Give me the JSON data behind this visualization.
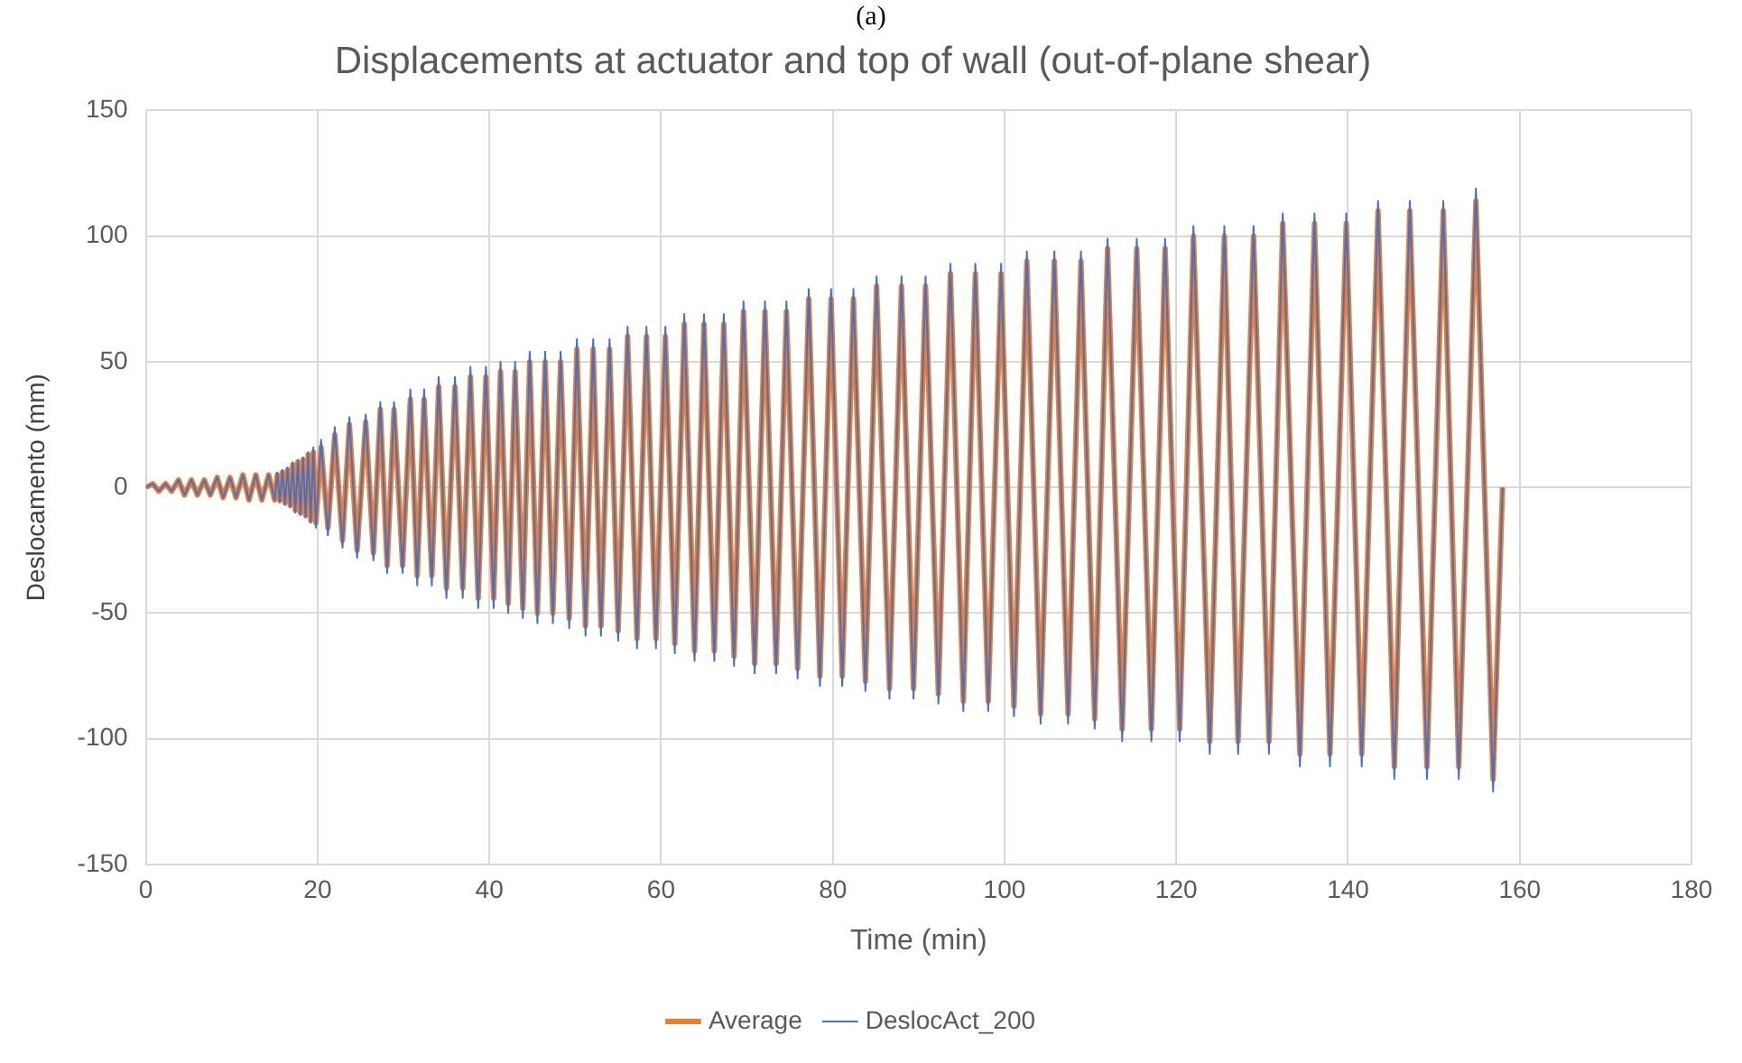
{
  "chart_data": {
    "type": "line",
    "title": "Displacements at actuator and top of wall (out-of-plane shear)",
    "xlabel": "Time (min)",
    "ylabel": "Deslocamento (mm)",
    "annotations": [
      "(a)"
    ],
    "x": [
      0,
      0.8,
      1.5,
      2.3,
      3.0,
      3.8,
      4.5,
      5.3,
      6.0,
      6.8,
      7.5,
      8.3,
      9.0,
      9.8,
      10.5,
      11.3,
      12.0,
      12.8,
      13.5,
      14.3,
      15.0,
      15.3,
      15.6,
      15.9,
      16.2,
      16.5,
      16.8,
      17.1,
      17.4,
      17.7,
      18.0,
      18.3,
      18.6,
      18.9,
      19.2,
      19.5,
      19.8,
      20.4,
      21.2,
      22.0,
      22.9,
      23.7,
      24.6,
      25.6,
      26.5,
      27.3,
      28.1,
      28.9,
      29.9,
      30.8,
      31.6,
      32.4,
      33.3,
      34.1,
      35.0,
      36.0,
      36.9,
      37.8,
      38.7,
      39.6,
      40.5,
      41.3,
      42.2,
      43.0,
      43.9,
      44.7,
      45.6,
      46.5,
      47.4,
      48.3,
      49.3,
      50.2,
      51.2,
      52.1,
      53.0,
      54.0,
      55.0,
      56.1,
      57.2,
      58.3,
      59.4,
      60.5,
      61.6,
      62.7,
      63.9,
      65.0,
      66.2,
      67.3,
      68.5,
      69.6,
      70.9,
      72.1,
      73.4,
      74.6,
      75.9,
      77.2,
      78.5,
      79.8,
      81.1,
      82.4,
      83.8,
      85.1,
      86.6,
      88.0,
      89.4,
      90.8,
      92.3,
      93.7,
      95.2,
      96.6,
      98.1,
      99.6,
      101.1,
      102.6,
      104.2,
      105.8,
      107.4,
      108.9,
      110.5,
      112.0,
      113.7,
      115.4,
      117.1,
      118.7,
      120.4,
      122.0,
      123.9,
      125.6,
      127.2,
      129.0,
      130.8,
      132.4,
      134.4,
      136.1,
      137.9,
      139.8,
      141.6,
      143.5,
      145.4,
      147.2,
      149.2,
      151.1,
      152.9,
      154.9,
      156.9,
      158.0
    ],
    "series": [
      {
        "name": "Average",
        "color": "#ed7d31",
        "values": [
          0,
          1.5,
          -1.5,
          1.5,
          -1.5,
          3,
          -3,
          3,
          -3,
          3,
          -3,
          4,
          -4,
          4,
          -4,
          5,
          -5,
          5,
          -5,
          5,
          -5,
          5,
          -5,
          6,
          -6,
          7,
          -7,
          9,
          -9,
          10,
          -10,
          11,
          -11,
          13,
          -13,
          14,
          -14,
          16,
          -16,
          21,
          -21,
          25,
          -25,
          26,
          -26,
          31,
          -31,
          31,
          -31,
          35,
          -35,
          35,
          -35,
          40,
          -40,
          40,
          -40,
          44,
          -44,
          44,
          -44,
          46,
          -46,
          46,
          -48,
          50,
          -50,
          50,
          -50,
          50,
          -52,
          55,
          -55,
          55,
          -55,
          55,
          -57,
          60,
          -60,
          60,
          -60,
          60,
          -62,
          65,
          -65,
          65,
          -65,
          65,
          -67,
          70,
          -70,
          70,
          -70,
          70,
          -72,
          75,
          -75,
          75,
          -75,
          75,
          -77,
          80,
          -80,
          80,
          -80,
          80,
          -82,
          85,
          -85,
          85,
          -85,
          85,
          -87,
          90,
          -90,
          90,
          -90,
          90,
          -92,
          95,
          -96,
          95,
          -96,
          95,
          -96,
          100,
          -101,
          100,
          -101,
          100,
          -101,
          105,
          -106,
          105,
          -106,
          105,
          -106,
          110,
          -111,
          110,
          -111,
          110,
          -111,
          114,
          -116,
          0
        ]
      },
      {
        "name": "DeslocAct_200",
        "color": "#4472c4",
        "values": [
          0,
          1.5,
          -1.5,
          1.5,
          -1.5,
          3,
          -3,
          3,
          -3,
          3,
          -3,
          4,
          -4,
          4,
          -4,
          5,
          -5,
          5,
          -5,
          5,
          -5,
          6,
          -6,
          7,
          -7,
          8,
          -8,
          10,
          -10,
          11,
          -11,
          12,
          -12,
          14,
          -14,
          16,
          -16,
          19,
          -19,
          24,
          -24,
          28,
          -28,
          29,
          -29,
          34,
          -34,
          34,
          -34,
          39,
          -39,
          39,
          -39,
          44,
          -44,
          44,
          -44,
          48,
          -48,
          48,
          -48,
          50,
          -50,
          50,
          -52,
          54,
          -54,
          54,
          -54,
          54,
          -56,
          59,
          -59,
          59,
          -59,
          59,
          -61,
          64,
          -64,
          64,
          -64,
          64,
          -66,
          69,
          -69,
          69,
          -69,
          69,
          -71,
          74,
          -74,
          74,
          -74,
          74,
          -76,
          79,
          -79,
          79,
          -79,
          79,
          -81,
          84,
          -84,
          84,
          -84,
          84,
          -86,
          89,
          -89,
          89,
          -89,
          89,
          -91,
          94,
          -94,
          94,
          -94,
          94,
          -96,
          99,
          -101,
          99,
          -101,
          99,
          -101,
          104,
          -106,
          104,
          -106,
          104,
          -106,
          109,
          -111,
          109,
          -111,
          109,
          -111,
          114,
          -116,
          114,
          -116,
          114,
          -116,
          119,
          -121,
          0
        ]
      }
    ],
    "xlim": [
      0,
      180
    ],
    "xticks": [
      0,
      20,
      40,
      60,
      80,
      100,
      120,
      140,
      160,
      180
    ],
    "ylim": [
      -150,
      150
    ],
    "yticks": [
      -150,
      -100,
      -50,
      0,
      50,
      100,
      150
    ],
    "grid": true,
    "legend": "bottom"
  }
}
